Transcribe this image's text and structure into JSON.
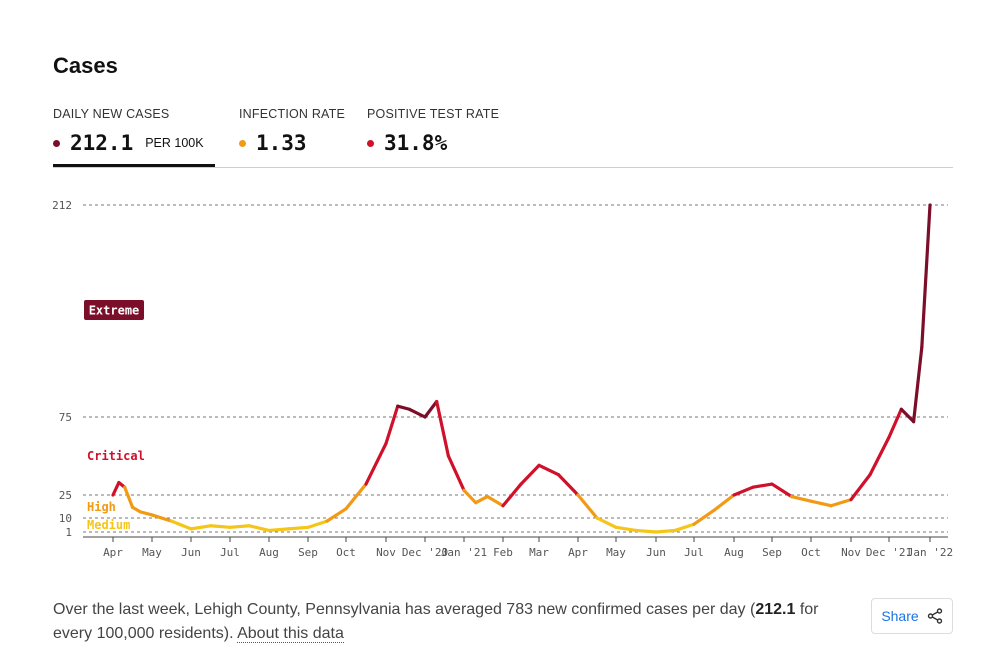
{
  "section": {
    "title": "Cases"
  },
  "tabs": [
    {
      "label": "DAILY NEW CASES",
      "value": "212.1",
      "unit": "PER 100K",
      "dot_color": "#7b0f2a",
      "active": true
    },
    {
      "label": "INFECTION RATE",
      "value": "1.33",
      "dot_color": "#f29a13",
      "active": false
    },
    {
      "label": "POSITIVE TEST RATE",
      "value": "31.8%",
      "dot_color": "#d0112b",
      "active": false
    }
  ],
  "chart_data": {
    "type": "line",
    "title": "Daily new cases per 100K",
    "y_ticks": [
      1,
      10,
      25,
      75,
      212
    ],
    "x_tick_labels": [
      "Apr",
      "May",
      "Jun",
      "Jul",
      "Aug",
      "Sep",
      "Oct",
      "Nov",
      "Dec '20",
      "Jan '21",
      "Feb",
      "Mar",
      "Apr",
      "May",
      "Jun",
      "Jul",
      "Aug",
      "Sep",
      "Oct",
      "Nov",
      "Dec '21",
      "Jan '22"
    ],
    "risk_levels": [
      {
        "name": "Extreme",
        "color": "#7b0f2a",
        "min": 75
      },
      {
        "name": "Critical",
        "color": "#d0112b",
        "min": 25
      },
      {
        "name": "High",
        "color": "#f29a13",
        "min": 10
      },
      {
        "name": "Medium",
        "color": "#f5c518",
        "min": 1
      }
    ],
    "series": [
      {
        "name": "Daily new cases per 100K",
        "x_month_index": [
          0,
          0.15,
          0.3,
          0.5,
          0.7,
          1,
          1.5,
          2,
          2.5,
          3,
          3.5,
          4,
          4.5,
          5,
          5.5,
          6,
          6.5,
          7,
          7.3,
          7.6,
          8,
          8.3,
          8.6,
          9,
          9.3,
          9.6,
          10,
          10.5,
          11,
          11.5,
          12,
          12.5,
          13,
          13.5,
          14,
          14.5,
          15,
          15.5,
          16,
          16.5,
          17,
          17.5,
          18,
          18.5,
          19,
          19.5,
          20,
          20.3,
          20.6,
          20.8,
          21
        ],
        "values": [
          25,
          33,
          30,
          17,
          14,
          12,
          8,
          3,
          5,
          4,
          5,
          2,
          3,
          4,
          8,
          16,
          32,
          58,
          82,
          80,
          75,
          85,
          50,
          28,
          20,
          24,
          18,
          32,
          44,
          38,
          25,
          10,
          4,
          2,
          1,
          2,
          6,
          15,
          25,
          30,
          32,
          24,
          21,
          18,
          22,
          38,
          62,
          80,
          72,
          120,
          212
        ]
      }
    ]
  },
  "summary": {
    "prefix": "Over the last week, Lehigh County, Pennsylvania has averaged 783 new confirmed cases per day (",
    "rate": "212.1",
    "suffix": " for every 100,000 residents).",
    "link": "About this data"
  },
  "share": {
    "label": "Share"
  }
}
